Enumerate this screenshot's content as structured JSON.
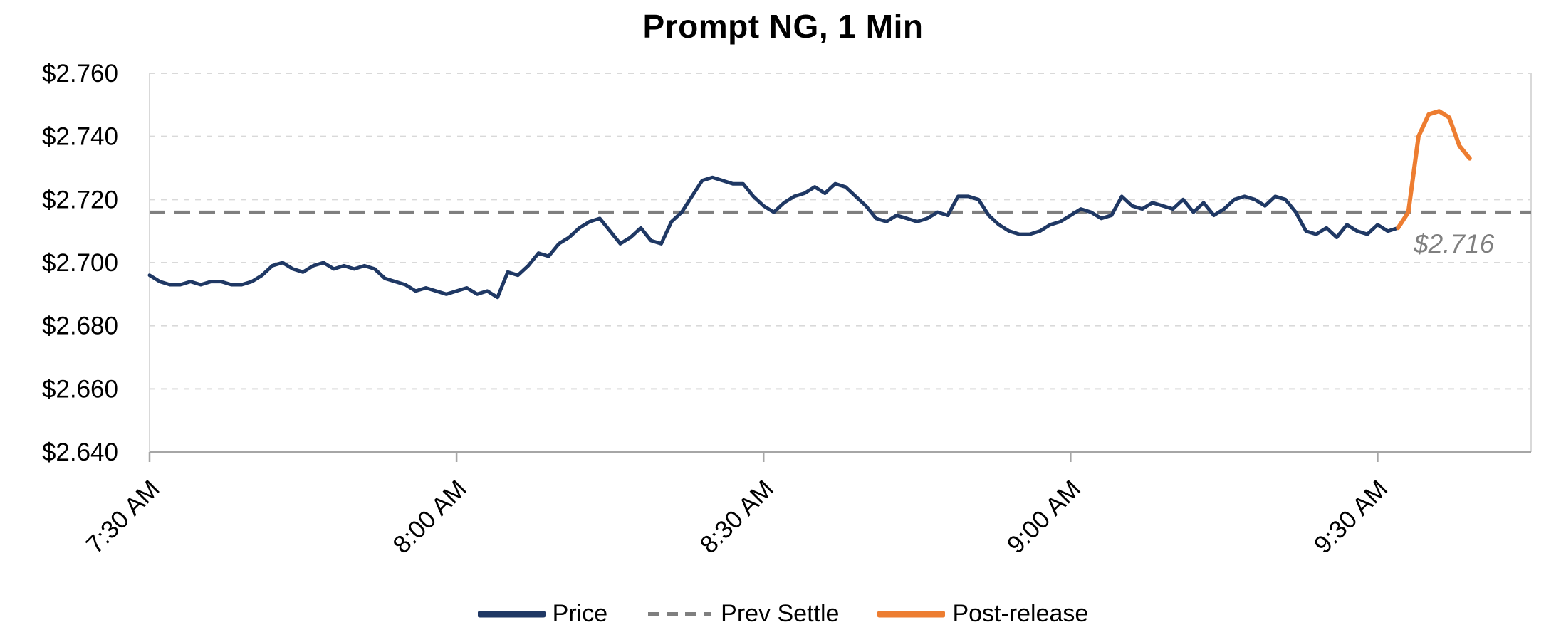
{
  "chart_data": {
    "type": "line",
    "title": "Prompt NG, 1 Min",
    "xlabel": "",
    "ylabel": "",
    "ylim": [
      2.64,
      2.76
    ],
    "x_domain": [
      0,
      135
    ],
    "grid": "horizontal-dashed",
    "legend_position": "bottom-center",
    "y_ticks": [
      {
        "label": "$2.760",
        "value": 2.76
      },
      {
        "label": "$2.740",
        "value": 2.74
      },
      {
        "label": "$2.720",
        "value": 2.72
      },
      {
        "label": "$2.700",
        "value": 2.7
      },
      {
        "label": "$2.680",
        "value": 2.68
      },
      {
        "label": "$2.660",
        "value": 2.66
      },
      {
        "label": "$2.640",
        "value": 2.64
      }
    ],
    "x_ticks": [
      {
        "label": "7:30 AM",
        "minute": 0
      },
      {
        "label": "8:00 AM",
        "minute": 30
      },
      {
        "label": "8:30 AM",
        "minute": 60
      },
      {
        "label": "9:00 AM",
        "minute": 90
      },
      {
        "label": "9:30 AM",
        "minute": 120
      }
    ],
    "prev_settle": {
      "label": "Prev Settle",
      "value": 2.716,
      "color": "#7f7f7f"
    },
    "annotation": {
      "text": "$2.716",
      "color": "#7f7f7f"
    },
    "series": [
      {
        "name": "Price",
        "color": "#1f3864",
        "width": 5,
        "start_minute": 0,
        "interval_minutes": 1,
        "values": [
          2.696,
          2.694,
          2.693,
          2.693,
          2.694,
          2.693,
          2.694,
          2.694,
          2.693,
          2.693,
          2.694,
          2.696,
          2.699,
          2.7,
          2.698,
          2.697,
          2.699,
          2.7,
          2.698,
          2.699,
          2.698,
          2.699,
          2.698,
          2.695,
          2.694,
          2.693,
          2.691,
          2.692,
          2.691,
          2.69,
          2.691,
          2.692,
          2.69,
          2.691,
          2.689,
          2.697,
          2.696,
          2.699,
          2.703,
          2.702,
          2.706,
          2.708,
          2.711,
          2.713,
          2.714,
          2.71,
          2.706,
          2.708,
          2.711,
          2.707,
          2.706,
          2.713,
          2.716,
          2.721,
          2.726,
          2.727,
          2.726,
          2.725,
          2.725,
          2.721,
          2.718,
          2.716,
          2.719,
          2.721,
          2.722,
          2.724,
          2.722,
          2.725,
          2.724,
          2.721,
          2.718,
          2.714,
          2.713,
          2.715,
          2.714,
          2.713,
          2.714,
          2.716,
          2.715,
          2.721,
          2.721,
          2.72,
          2.715,
          2.712,
          2.71,
          2.709,
          2.709,
          2.71,
          2.712,
          2.713,
          2.715,
          2.717,
          2.716,
          2.714,
          2.715,
          2.721,
          2.718,
          2.717,
          2.719,
          2.718,
          2.717,
          2.72,
          2.716,
          2.719,
          2.715,
          2.717,
          2.72,
          2.721,
          2.72,
          2.718,
          2.721,
          2.72,
          2.716,
          2.71,
          2.709,
          2.711,
          2.708,
          2.712,
          2.71,
          2.709,
          2.712,
          2.71,
          2.711
        ]
      },
      {
        "name": "Post-release",
        "color": "#ed7d31",
        "width": 6,
        "start_minute": 122,
        "interval_minutes": 1,
        "values": [
          2.711,
          2.716,
          2.74,
          2.747,
          2.748,
          2.746,
          2.737,
          2.733
        ]
      }
    ],
    "legend": [
      {
        "label": "Price",
        "color": "#1f3864",
        "dash": false
      },
      {
        "label": "Prev Settle",
        "color": "#7f7f7f",
        "dash": true
      },
      {
        "label": "Post-release",
        "color": "#ed7d31",
        "dash": false
      }
    ]
  }
}
